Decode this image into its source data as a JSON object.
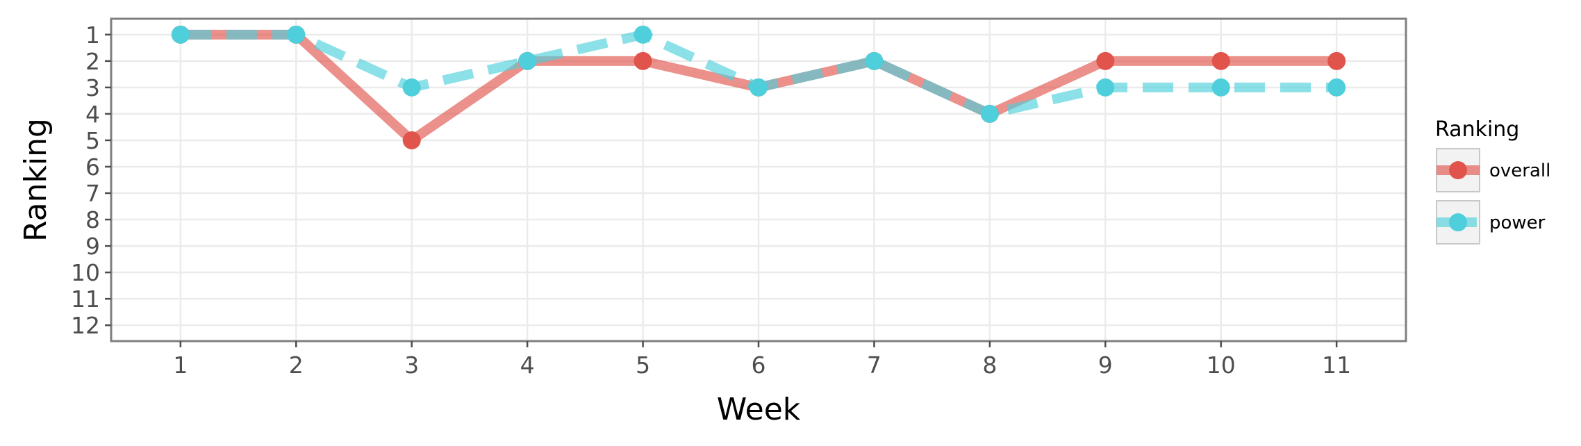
{
  "chart_data": {
    "type": "line",
    "title": "",
    "xlabel": "Week",
    "ylabel": "Ranking",
    "x": [
      1,
      2,
      3,
      4,
      5,
      6,
      7,
      8,
      9,
      10,
      11
    ],
    "xlim": [
      0.4,
      11.6
    ],
    "ylim": [
      12.6,
      0.4
    ],
    "y_reversed": true,
    "x_ticks": [
      "1",
      "2",
      "3",
      "4",
      "5",
      "6",
      "7",
      "8",
      "9",
      "10",
      "11"
    ],
    "y_ticks": [
      "1",
      "2",
      "3",
      "4",
      "5",
      "6",
      "7",
      "8",
      "9",
      "10",
      "11",
      "12"
    ],
    "grid": true,
    "legend": {
      "title": "Ranking",
      "position": "right"
    },
    "series": [
      {
        "name": "overall",
        "values": [
          1,
          1,
          5,
          2,
          2,
          3,
          2,
          4,
          2,
          2,
          2
        ],
        "color": "#e0544b",
        "line_style": "solid"
      },
      {
        "name": "power",
        "values": [
          1,
          1,
          3,
          2,
          1,
          3,
          2,
          4,
          3,
          3,
          3
        ],
        "color": "#4ecfdb",
        "line_style": "dashed"
      }
    ]
  }
}
